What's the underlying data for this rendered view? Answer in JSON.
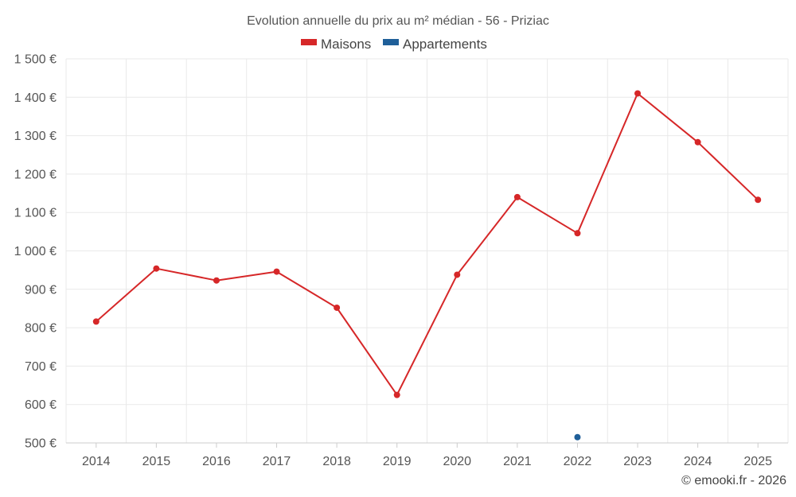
{
  "chart_data": {
    "type": "line",
    "title": "Evolution annuelle du prix au m² médian - 56 - Priziac",
    "categories": [
      "2014",
      "2015",
      "2016",
      "2017",
      "2018",
      "2019",
      "2020",
      "2021",
      "2022",
      "2023",
      "2024",
      "2025"
    ],
    "series": [
      {
        "name": "Maisons",
        "color": "#d62728",
        "values": [
          816,
          954,
          923,
          946,
          852,
          625,
          938,
          1140,
          1046,
          1410,
          1283,
          1133
        ]
      },
      {
        "name": "Appartements",
        "color": "#1f5f99",
        "values": [
          null,
          null,
          null,
          null,
          null,
          null,
          null,
          null,
          515,
          null,
          null,
          null
        ]
      }
    ],
    "ylim": [
      500,
      1500
    ],
    "yticks": [
      500,
      600,
      700,
      800,
      900,
      1000,
      1100,
      1200,
      1300,
      1400,
      1500
    ],
    "ytick_labels": [
      "500 €",
      "600 €",
      "700 €",
      "800 €",
      "900 €",
      "1 000 €",
      "1 100 €",
      "1 200 €",
      "1 300 €",
      "1 400 €",
      "1 500 €"
    ],
    "xlabel": "",
    "ylabel": "",
    "grid": true,
    "legend_position": "top-center"
  },
  "credit": "© emooki.fr - 2026"
}
